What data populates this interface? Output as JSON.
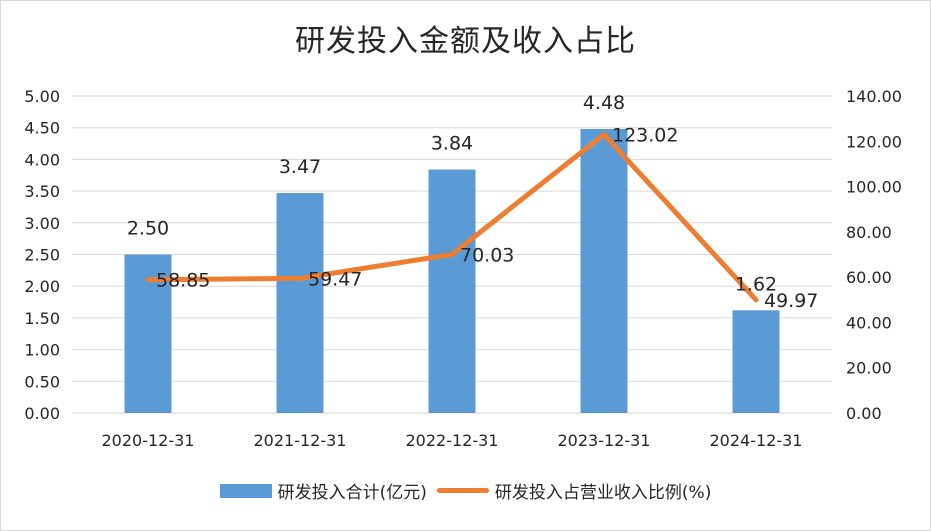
{
  "chart_data": {
    "type": "bar+line",
    "title": "研发投入金额及收入占比",
    "categories": [
      "2020-12-31",
      "2021-12-31",
      "2022-12-31",
      "2023-12-31",
      "2024-12-31"
    ],
    "series": [
      {
        "name": "研发投入合计(亿元)",
        "type": "bar",
        "axis": "left",
        "color": "#5b9bd5",
        "values": [
          2.5,
          3.47,
          3.84,
          4.48,
          1.62
        ],
        "labels": [
          "2.50",
          "3.47",
          "3.84",
          "4.48",
          "1.62"
        ]
      },
      {
        "name": "研发投入占营业收入比例(%)",
        "type": "line",
        "axis": "right",
        "color": "#ed7d31",
        "values": [
          58.85,
          59.47,
          70.03,
          123.02,
          49.97
        ],
        "labels": [
          "58.85",
          "59.47",
          "70.03",
          "123.02",
          "49.97"
        ]
      }
    ],
    "y_left": {
      "min": 0,
      "max": 5,
      "step": 0.5,
      "ticks": [
        "0.00",
        "0.50",
        "1.00",
        "1.50",
        "2.00",
        "2.50",
        "3.00",
        "3.50",
        "4.00",
        "4.50",
        "5.00"
      ]
    },
    "y_right": {
      "min": 0,
      "max": 140,
      "step": 20,
      "ticks": [
        "0.00",
        "20.00",
        "40.00",
        "60.00",
        "80.00",
        "100.00",
        "120.00",
        "140.00"
      ]
    },
    "grid": true,
    "legend": "bottom"
  }
}
